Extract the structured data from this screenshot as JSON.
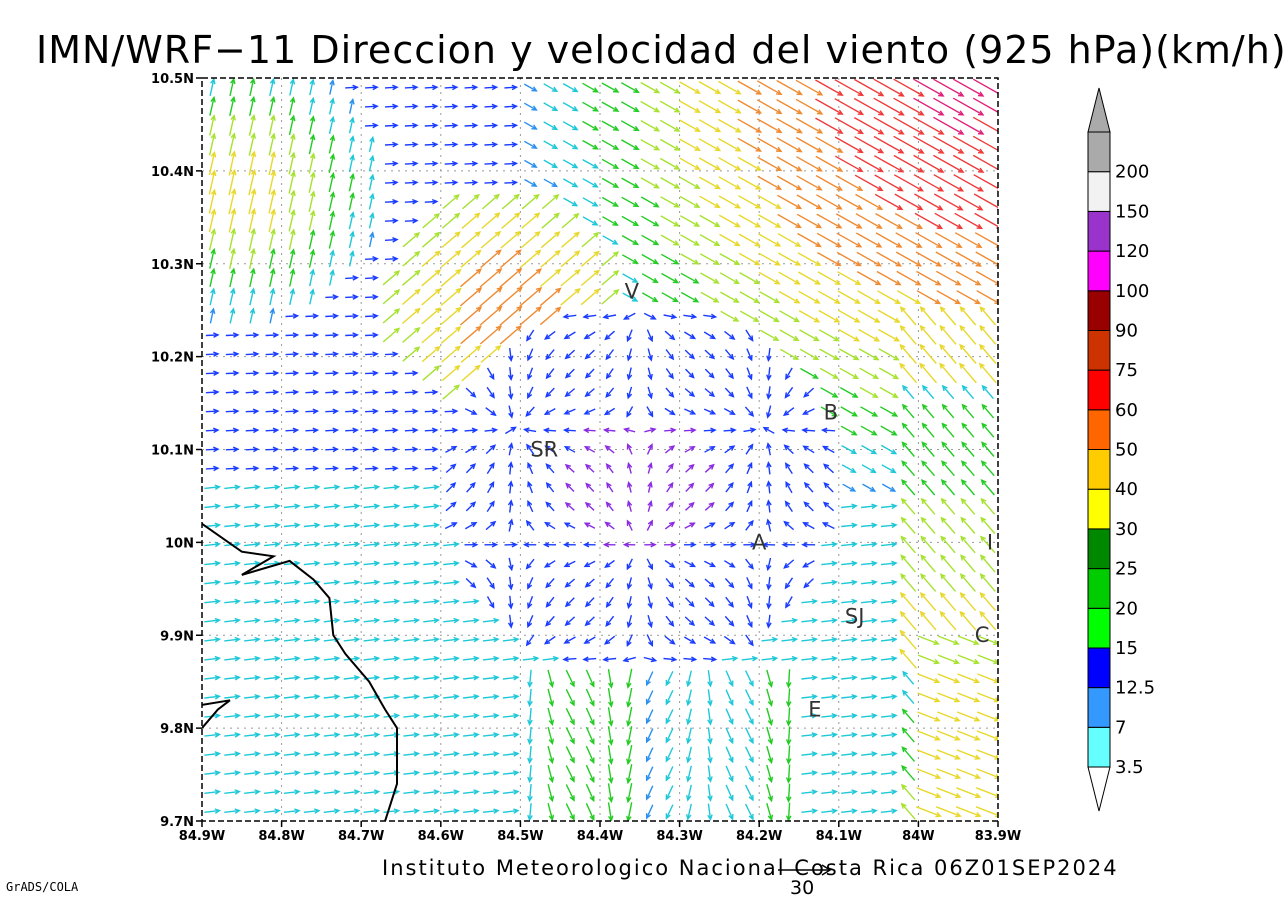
{
  "title": "IMN/WRF−11 Direccion y velocidad del viento (925 hPa)(km/h)",
  "footer": "Instituto Meteorologico Nacional Costa Rica 06Z01SEP2024",
  "grads_label": "GrADS/COLA",
  "reference_vector": {
    "label": "30",
    "speed": 30
  },
  "map": {
    "lon_range": [
      -84.9,
      -83.9
    ],
    "lat_range": [
      9.7,
      10.5
    ],
    "lon_ticks": [
      "84.9W",
      "84.8W",
      "84.7W",
      "84.6W",
      "84.5W",
      "84.4W",
      "84.3W",
      "84.2W",
      "84.1W",
      "84W",
      "83.9W"
    ],
    "lat_ticks": [
      "9.7N",
      "9.8N",
      "9.9N",
      "10N",
      "10.1N",
      "10.2N",
      "10.3N",
      "10.4N",
      "10.5N"
    ],
    "grid": "dotted",
    "cities": [
      {
        "label": "V",
        "lon": -84.36,
        "lat": 10.27
      },
      {
        "label": "SR",
        "lon": -84.47,
        "lat": 10.1
      },
      {
        "label": "B",
        "lon": -84.11,
        "lat": 10.14
      },
      {
        "label": "A",
        "lon": -84.2,
        "lat": 10.0
      },
      {
        "label": "SJ",
        "lon": -84.08,
        "lat": 9.92
      },
      {
        "label": "C",
        "lon": -83.92,
        "lat": 9.9
      },
      {
        "label": "E",
        "lon": -84.13,
        "lat": 9.82
      },
      {
        "label": "I",
        "lon": -83.91,
        "lat": 10.0
      }
    ],
    "coastline": [
      [
        -84.9,
        10.02
      ],
      [
        -84.85,
        9.99
      ],
      [
        -84.81,
        9.985
      ],
      [
        -84.83,
        9.975
      ],
      [
        -84.85,
        9.965
      ],
      [
        -84.79,
        9.98
      ],
      [
        -84.76,
        9.96
      ],
      [
        -84.74,
        9.94
      ],
      [
        -84.735,
        9.9
      ],
      [
        -84.72,
        9.88
      ],
      [
        -84.69,
        9.85
      ],
      [
        -84.67,
        9.82
      ],
      [
        -84.655,
        9.8
      ],
      [
        -84.655,
        9.74
      ],
      [
        -84.67,
        9.7
      ]
    ],
    "peninsula": [
      [
        -84.9,
        9.8
      ],
      [
        -84.88,
        9.82
      ],
      [
        -84.865,
        9.83
      ],
      [
        -84.9,
        9.825
      ]
    ]
  },
  "colorbar": {
    "labels": [
      "3.5",
      "7",
      "12.5",
      "15",
      "20",
      "25",
      "30",
      "40",
      "50",
      "60",
      "75",
      "90",
      "100",
      "120",
      "150",
      "200"
    ],
    "colors": [
      "#66ffff",
      "#3399ff",
      "#0000ff",
      "#00ff00",
      "#00cc00",
      "#008800",
      "#ffff00",
      "#ffcc00",
      "#ff6600",
      "#ff0000",
      "#cc3300",
      "#990000",
      "#ff00ff",
      "#9933cc",
      "#f2f2f2",
      "#aaaaaa"
    ]
  },
  "arrow_colors": {
    "purple": "#8a2be2",
    "blue": "#1a3cff",
    "lightblue": "#2a90f0",
    "cyan": "#1ec8d8",
    "green": "#22cc22",
    "yellowgreen": "#a6e22e",
    "yellow": "#e8d82a",
    "orange": "#f08a30",
    "red": "#f03a3a",
    "magenta": "#e0207a"
  }
}
